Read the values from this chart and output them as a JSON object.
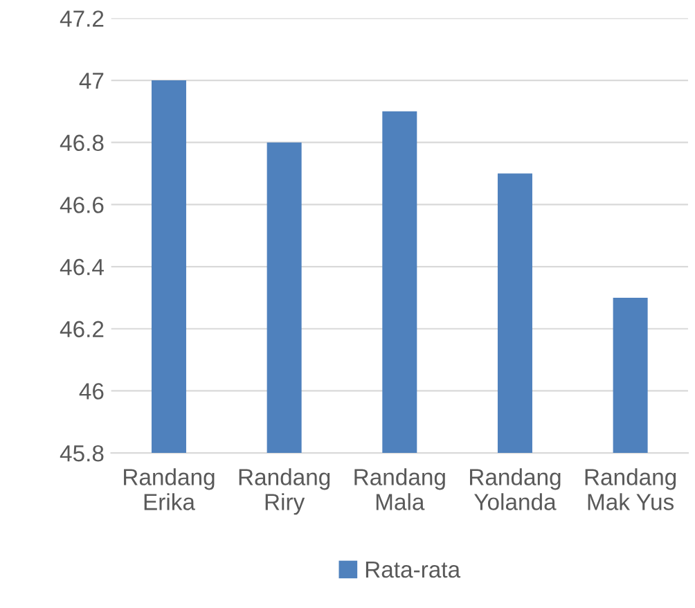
{
  "chart_data": {
    "type": "bar",
    "categories": [
      "Randang Erika",
      "Randang Riry",
      "Randang Mala",
      "Randang Yolanda",
      "Randang Mak Yus"
    ],
    "series": [
      {
        "name": "Rata-rata",
        "color": "#4f81bd",
        "values": [
          47,
          46.8,
          46.9,
          46.7,
          46.3
        ]
      }
    ],
    "ylim": [
      45.8,
      47.2
    ],
    "yticks": [
      45.8,
      46,
      46.2,
      46.4,
      46.6,
      46.8,
      47,
      47.2
    ],
    "grid": "y",
    "legend": "bottom"
  }
}
